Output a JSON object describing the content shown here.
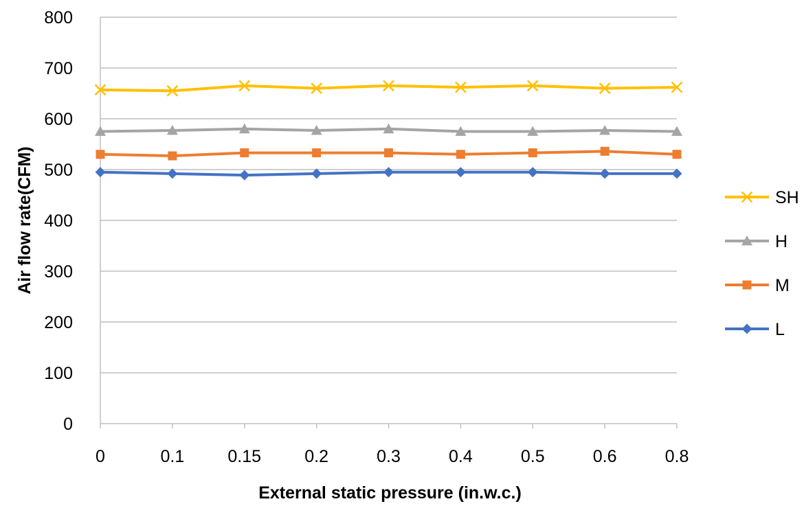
{
  "chart_data": {
    "type": "line",
    "title": "",
    "xlabel": "External static pressure (in.w.c.)",
    "ylabel": "Air flow rate(CFM)",
    "x": [
      "0",
      "0.1",
      "0.15",
      "0.2",
      "0.3",
      "0.4",
      "0.5",
      "0.6",
      "0.8"
    ],
    "ylim": [
      0,
      800
    ],
    "yticks": [
      "0",
      "100",
      "200",
      "300",
      "400",
      "500",
      "600",
      "700",
      "800"
    ],
    "grid": true,
    "legend_position": "right",
    "series": [
      {
        "name": "SH",
        "color": "#FFC000",
        "marker": "x",
        "values": [
          657,
          655,
          665,
          660,
          665,
          662,
          665,
          660,
          662
        ]
      },
      {
        "name": "H",
        "color": "#A5A5A5",
        "marker": "triangle",
        "values": [
          575,
          577,
          580,
          577,
          580,
          575,
          575,
          577,
          575
        ]
      },
      {
        "name": "M",
        "color": "#ED7D31",
        "marker": "square",
        "values": [
          530,
          527,
          533,
          533,
          533,
          530,
          533,
          536,
          530
        ]
      },
      {
        "name": "L",
        "color": "#4472C4",
        "marker": "diamond",
        "values": [
          495,
          492,
          489,
          492,
          495,
          495,
          495,
          492,
          492
        ]
      }
    ]
  }
}
